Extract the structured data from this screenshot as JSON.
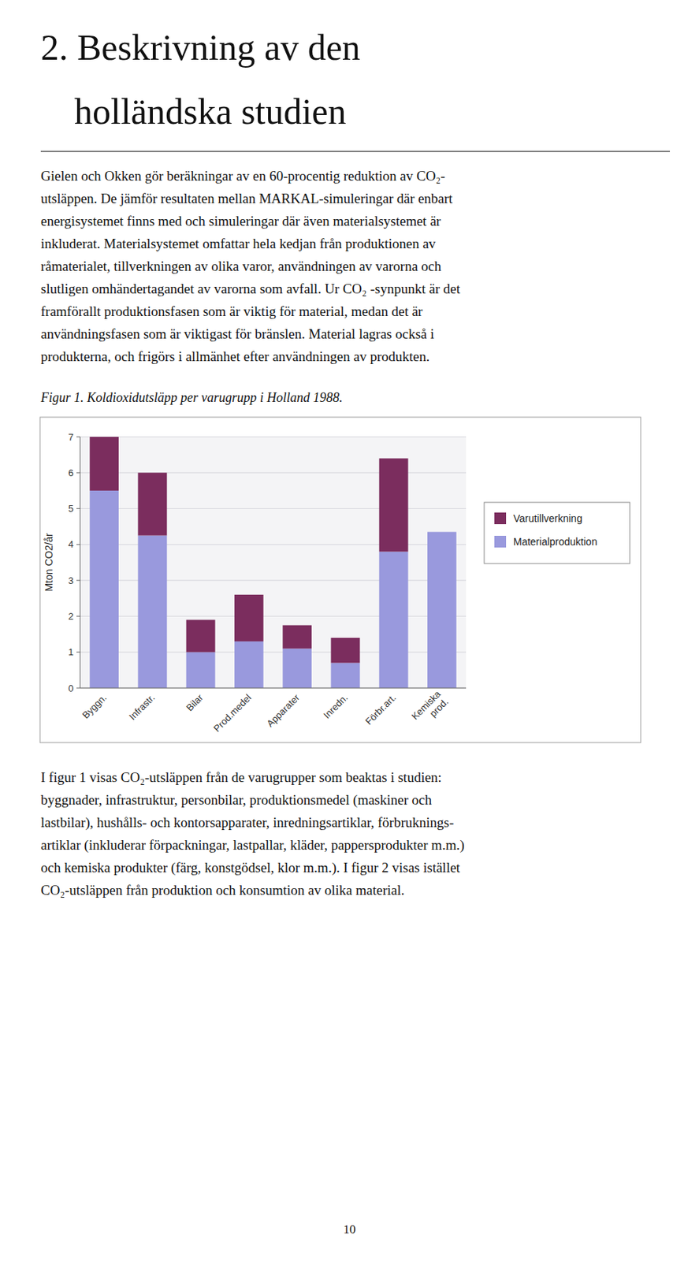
{
  "heading_lines": [
    "2. Beskrivning av den",
    "holländska studien"
  ],
  "body_text_1": [
    "Gielen och Okken gör beräkningar av en 60-procentig reduktion av CO₂-",
    "utsläppen. De jämför resultaten mellan MARKAL-simuleringar där enbart",
    "energisystemet finns med och simuleringar där även materialsystemet är",
    "inkluderat. Materialsystemet omfattar hela kedjan från produktionen av",
    "råmaterialet, tillverkningen av olika varor, användningen av varorna och",
    "slutligen omhändertagandet av varorna som avfall. Ur CO₂ -synpunkt är det",
    "framförallt produktionsfasen som är viktig för material, medan det är",
    "användningsfasen som är viktigast för bränslen. Material lagras också i",
    "produkterna, och frigörs i allmänhet efter användningen av produkten."
  ],
  "body_text_2": [
    "I figur 1 visas CO₂-utsläppen från de varugrupper som beaktas i studien:",
    "byggnader, infrastruktur, personbilar, produktionsmedel (maskiner och",
    "lastbilar), hushålls- och kontorsapparater, inredningsartiklar, förbruknings-",
    "artiklar (inkluderar förpackningar, lastpallar, kläder, pappersprodukter m.m.)",
    "och kemiska produkter (färg, konstgödsel, klor m.m.). I figur 2 visas istället",
    "CO₂-utsläppen från produktion och konsumtion av olika material."
  ],
  "page_number": "10",
  "chart_data": {
    "type": "bar",
    "title": "Figur 1. Koldioxidutsläpp per varugrupp i Holland 1988.",
    "stacked": true,
    "categories": [
      "Byggn.",
      "Infrastr.",
      "Bilar",
      "Prod.medel",
      "Apparater",
      "Inredn.",
      "Förbr.art.",
      "Kemiska\nprod."
    ],
    "series": [
      {
        "name": "Materialproduktion",
        "color": "#9999DD",
        "values": [
          5.5,
          4.25,
          1.0,
          1.3,
          1.1,
          0.7,
          3.8,
          4.35
        ]
      },
      {
        "name": "Varutillverkning",
        "color": "#7B2D5E",
        "values": [
          1.5,
          1.75,
          0.9,
          1.3,
          0.65,
          0.7,
          2.6,
          0.0
        ]
      }
    ],
    "y_label": "Mton CO2/år",
    "ylim": [
      0,
      7
    ],
    "yticks": [
      0,
      1,
      2,
      3,
      4,
      5,
      6,
      7
    ],
    "grid": true,
    "legend": "right"
  }
}
